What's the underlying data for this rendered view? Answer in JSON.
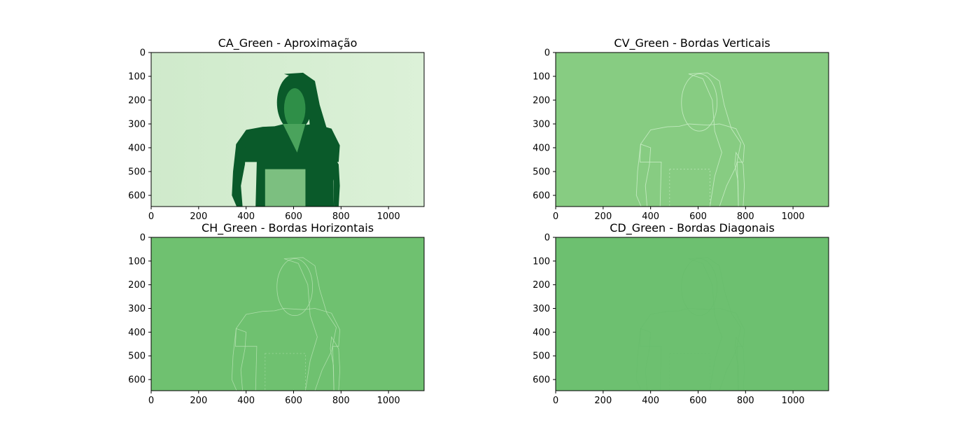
{
  "figure": {
    "background": "#ffffff",
    "colormap": "Greens"
  },
  "chart_data": [
    {
      "type": "heatmap",
      "title": "CA_Green - Aproximação",
      "xlabel": "",
      "ylabel": "",
      "xlim": [
        0,
        1150
      ],
      "ylim": [
        647,
        0
      ],
      "xticks": [
        0,
        200,
        400,
        600,
        800,
        1000
      ],
      "yticks": [
        0,
        100,
        200,
        300,
        400,
        500,
        600
      ],
      "grid": false,
      "background_color": "#d4edd0",
      "content": "approximation"
    },
    {
      "type": "heatmap",
      "title": "CV_Green - Bordas Verticais",
      "xlabel": "",
      "ylabel": "",
      "xlim": [
        0,
        1150
      ],
      "ylim": [
        647,
        0
      ],
      "xticks": [
        0,
        200,
        400,
        600,
        800,
        1000
      ],
      "yticks": [
        0,
        100,
        200,
        300,
        400,
        500,
        600
      ],
      "grid": false,
      "background_color": "#87cc82",
      "content": "vertical-edges"
    },
    {
      "type": "heatmap",
      "title": "CH_Green - Bordas Horizontais",
      "xlabel": "",
      "ylabel": "",
      "xlim": [
        0,
        1150
      ],
      "ylim": [
        647,
        0
      ],
      "xticks": [
        0,
        200,
        400,
        600,
        800,
        1000
      ],
      "yticks": [
        0,
        100,
        200,
        300,
        400,
        500,
        600
      ],
      "grid": false,
      "background_color": "#6fc170",
      "content": "horizontal-edges"
    },
    {
      "type": "heatmap",
      "title": "CD_Green - Bordas Diagonais",
      "xlabel": "",
      "ylabel": "",
      "xlim": [
        0,
        1150
      ],
      "ylim": [
        647,
        0
      ],
      "xticks": [
        0,
        200,
        400,
        600,
        800,
        1000
      ],
      "yticks": [
        0,
        100,
        200,
        300,
        400,
        500,
        600
      ],
      "grid": false,
      "background_color": "#6dc070",
      "content": "diagonal-edges"
    }
  ]
}
